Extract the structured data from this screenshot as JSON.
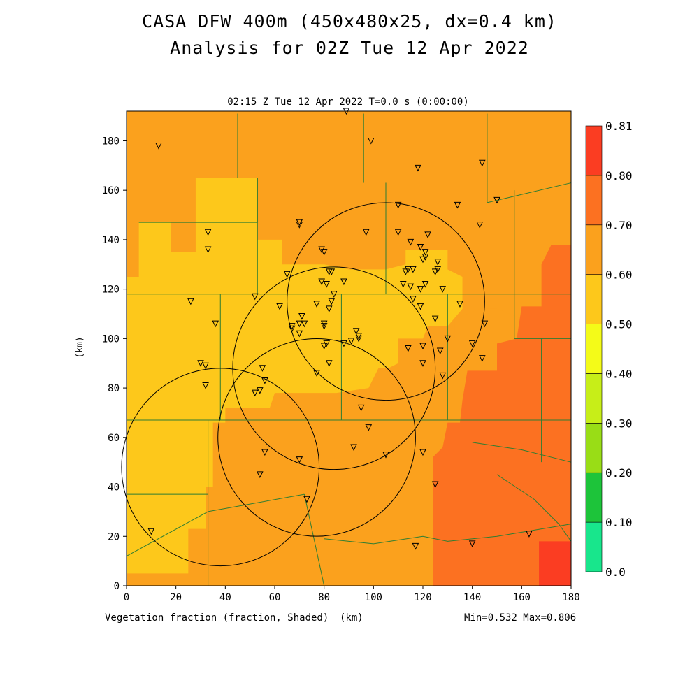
{
  "title": {
    "line1": "CASA DFW 400m (450x480x25, dx=0.4 km)",
    "line2": "Analysis for 02Z Tue 12 Apr 2022"
  },
  "plot_header": "02:15 Z Tue 12 Apr 2022   T=0.0 s (0:00:00)",
  "footer": {
    "variable_label": "Vegetation fraction (fraction, Shaded)",
    "x_unit": "(km)",
    "minmax": "Min=0.532 Max=0.806"
  },
  "colors": {
    "frame": "#000000",
    "county_lines": "#2e7d32",
    "range_rings": "#000000"
  },
  "chart_data": {
    "type": "heatmap",
    "xlabel": "(km)",
    "ylabel": "(km)",
    "xlim": [
      0,
      180
    ],
    "ylim": [
      0,
      192
    ],
    "x_ticks": [
      0,
      20,
      40,
      60,
      80,
      100,
      120,
      140,
      160,
      180
    ],
    "y_ticks": [
      0,
      20,
      40,
      60,
      80,
      100,
      120,
      140,
      160,
      180
    ],
    "colorbar": {
      "levels": [
        0.0,
        0.1,
        0.2,
        0.3,
        0.4,
        0.5,
        0.6,
        0.7,
        0.8,
        0.81
      ],
      "tick_labels": [
        "0.0",
        "0.10",
        "0.20",
        "0.30",
        "0.40",
        "0.50",
        "0.60",
        "0.70",
        "0.80",
        "0.81"
      ],
      "colors": [
        "#18e68c",
        "#1dc43a",
        "#99dd16",
        "#c7ee18",
        "#f4fb18",
        "#fdc81b",
        "#fba11d",
        "#fc7121",
        "#fb3d22"
      ]
    },
    "regions": [
      {
        "value": 0.55,
        "polygon": [
          [
            5,
            125
          ],
          [
            5,
            147
          ],
          [
            18,
            147
          ],
          [
            18,
            135
          ],
          [
            28,
            135
          ],
          [
            28,
            165
          ],
          [
            53,
            165
          ],
          [
            53,
            140
          ],
          [
            63,
            140
          ],
          [
            63,
            130
          ],
          [
            80,
            130
          ],
          [
            90,
            128
          ],
          [
            105,
            128
          ],
          [
            113,
            130
          ],
          [
            113,
            136
          ],
          [
            130,
            136
          ],
          [
            130,
            128
          ],
          [
            136,
            125
          ],
          [
            136,
            112
          ],
          [
            130,
            105
          ],
          [
            122,
            105
          ],
          [
            120,
            100
          ],
          [
            110,
            100
          ],
          [
            110,
            90
          ],
          [
            106,
            88
          ],
          [
            102,
            88
          ],
          [
            98,
            80
          ],
          [
            85,
            78
          ],
          [
            60,
            78
          ],
          [
            58,
            72
          ],
          [
            40,
            72
          ],
          [
            40,
            66
          ],
          [
            35,
            66
          ],
          [
            35,
            40
          ],
          [
            32,
            40
          ],
          [
            32,
            23
          ],
          [
            25,
            23
          ],
          [
            25,
            5
          ],
          [
            0,
            5
          ],
          [
            0,
            125
          ]
        ]
      },
      {
        "value": 0.65,
        "polygon": [
          [
            133,
            108
          ],
          [
            133,
            100
          ],
          [
            143,
            90
          ],
          [
            152,
            90
          ],
          [
            152,
            97
          ],
          [
            160,
            97
          ],
          [
            160,
            108
          ],
          [
            150,
            112
          ],
          [
            143,
            112
          ]
        ]
      },
      {
        "value": 0.75,
        "polygon": [
          [
            180,
            138
          ],
          [
            172,
            138
          ],
          [
            168,
            130
          ],
          [
            168,
            113
          ],
          [
            160,
            113
          ],
          [
            158,
            100
          ],
          [
            150,
            98
          ],
          [
            150,
            87
          ],
          [
            138,
            87
          ],
          [
            136,
            75
          ],
          [
            135,
            66
          ],
          [
            130,
            66
          ],
          [
            128,
            56
          ],
          [
            124,
            52
          ],
          [
            124,
            0
          ],
          [
            180,
            0
          ]
        ]
      },
      {
        "value": 0.8,
        "polygon": [
          [
            167,
            0
          ],
          [
            167,
            18
          ],
          [
            180,
            18
          ],
          [
            180,
            0
          ]
        ]
      }
    ],
    "county_lines": [
      [
        [
          0,
          118
        ],
        [
          180,
          118
        ]
      ],
      [
        [
          5,
          147
        ],
        [
          53,
          147
        ],
        [
          53,
          165
        ],
        [
          180,
          165
        ]
      ],
      [
        [
          53,
          165
        ],
        [
          53,
          118
        ]
      ],
      [
        [
          96,
          191
        ],
        [
          96,
          163
        ]
      ],
      [
        [
          45,
          191
        ],
        [
          45,
          165
        ]
      ],
      [
        [
          146,
          191
        ],
        [
          146,
          163
        ]
      ],
      [
        [
          105,
          163
        ],
        [
          105,
          118
        ]
      ],
      [
        [
          146,
          163
        ],
        [
          146,
          155
        ]
      ],
      [
        [
          146,
          155
        ],
        [
          180,
          163
        ]
      ],
      [
        [
          0,
          67
        ],
        [
          180,
          67
        ]
      ],
      [
        [
          38,
          118
        ],
        [
          38,
          67
        ]
      ],
      [
        [
          87,
          118
        ],
        [
          87,
          67
        ]
      ],
      [
        [
          130,
          118
        ],
        [
          130,
          67
        ]
      ],
      [
        [
          157,
          160
        ],
        [
          157,
          100
        ]
      ],
      [
        [
          157,
          100
        ],
        [
          180,
          100
        ]
      ],
      [
        [
          168,
          100
        ],
        [
          168,
          50
        ]
      ],
      [
        [
          0,
          67
        ],
        [
          0,
          37
        ]
      ],
      [
        [
          0,
          37
        ],
        [
          33,
          37
        ]
      ],
      [
        [
          33,
          67
        ],
        [
          33,
          0
        ]
      ],
      [
        [
          0,
          12
        ],
        [
          33,
          30
        ]
      ],
      [
        [
          33,
          30
        ],
        [
          72,
          37
        ]
      ],
      [
        [
          72,
          37
        ],
        [
          80,
          0
        ]
      ],
      [
        [
          80,
          19
        ],
        [
          100,
          17
        ],
        [
          120,
          20
        ],
        [
          130,
          18
        ],
        [
          150,
          20
        ],
        [
          180,
          25
        ]
      ],
      [
        [
          140,
          58
        ],
        [
          160,
          55
        ],
        [
          180,
          50
        ]
      ],
      [
        [
          150,
          45
        ],
        [
          165,
          35
        ],
        [
          175,
          25
        ],
        [
          180,
          18
        ]
      ]
    ],
    "range_rings": [
      {
        "center": [
          84,
          88
        ],
        "radius": 41
      },
      {
        "center": [
          105,
          115
        ],
        "radius": 40
      },
      {
        "center": [
          38,
          48
        ],
        "radius": 40
      },
      {
        "center": [
          77,
          60
        ],
        "radius": 40
      }
    ],
    "station_markers": [
      [
        13,
        178
      ],
      [
        89,
        192
      ],
      [
        99,
        180
      ],
      [
        118,
        169
      ],
      [
        144,
        171
      ],
      [
        150,
        156
      ],
      [
        110,
        154
      ],
      [
        134,
        154
      ],
      [
        143,
        146
      ],
      [
        70,
        147
      ],
      [
        70,
        146
      ],
      [
        33,
        143
      ],
      [
        33,
        136
      ],
      [
        79,
        136
      ],
      [
        80,
        135
      ],
      [
        97,
        143
      ],
      [
        110,
        143
      ],
      [
        115,
        139
      ],
      [
        119,
        137
      ],
      [
        122,
        142
      ],
      [
        121,
        135
      ],
      [
        121,
        133
      ],
      [
        120,
        132
      ],
      [
        126,
        131
      ],
      [
        126,
        128
      ],
      [
        125,
        127
      ],
      [
        114,
        128
      ],
      [
        113,
        127
      ],
      [
        116,
        128
      ],
      [
        65,
        126
      ],
      [
        79,
        123
      ],
      [
        82,
        127
      ],
      [
        83,
        127
      ],
      [
        88,
        123
      ],
      [
        81,
        122
      ],
      [
        84,
        118
      ],
      [
        83,
        115
      ],
      [
        82,
        112
      ],
      [
        77,
        114
      ],
      [
        71,
        109
      ],
      [
        70,
        106
      ],
      [
        72,
        106
      ],
      [
        67,
        105
      ],
      [
        67,
        104
      ],
      [
        70,
        102
      ],
      [
        52,
        117
      ],
      [
        62,
        113
      ],
      [
        26,
        115
      ],
      [
        36,
        106
      ],
      [
        80,
        106
      ],
      [
        80,
        105
      ],
      [
        93,
        103
      ],
      [
        94,
        101
      ],
      [
        94,
        100
      ],
      [
        91,
        99
      ],
      [
        88,
        98
      ],
      [
        81,
        98
      ],
      [
        80,
        97
      ],
      [
        82,
        90
      ],
      [
        112,
        122
      ],
      [
        115,
        121
      ],
      [
        119,
        120
      ],
      [
        121,
        122
      ],
      [
        116,
        116
      ],
      [
        119,
        113
      ],
      [
        128,
        120
      ],
      [
        125,
        108
      ],
      [
        114,
        96
      ],
      [
        120,
        97
      ],
      [
        130,
        100
      ],
      [
        127,
        95
      ],
      [
        140,
        98
      ],
      [
        144,
        92
      ],
      [
        145,
        106
      ],
      [
        135,
        114
      ],
      [
        120,
        90
      ],
      [
        128,
        85
      ],
      [
        77,
        86
      ],
      [
        52,
        78
      ],
      [
        54,
        79
      ],
      [
        55,
        88
      ],
      [
        56,
        83
      ],
      [
        30,
        90
      ],
      [
        32,
        89
      ],
      [
        32,
        81
      ],
      [
        95,
        72
      ],
      [
        98,
        64
      ],
      [
        92,
        56
      ],
      [
        105,
        53
      ],
      [
        120,
        54
      ],
      [
        125,
        41
      ],
      [
        70,
        51
      ],
      [
        56,
        54
      ],
      [
        54,
        45
      ],
      [
        73,
        35
      ],
      [
        10,
        22
      ],
      [
        117,
        16
      ],
      [
        140,
        17
      ],
      [
        163,
        21
      ]
    ]
  }
}
